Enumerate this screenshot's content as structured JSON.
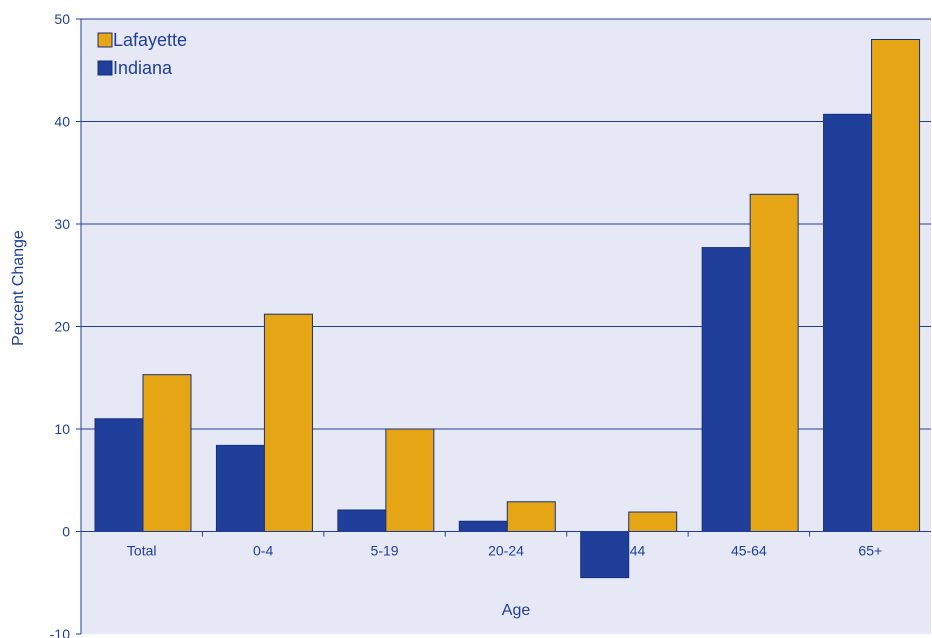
{
  "chart_data": {
    "type": "bar",
    "title": "",
    "xlabel": "Age",
    "ylabel": "Percent Change",
    "categories": [
      "Total",
      "0-4",
      "5-19",
      "20-24",
      "25-44",
      "45-64",
      "65+"
    ],
    "series": [
      {
        "name": "Indiana",
        "values": [
          11.0,
          8.4,
          2.1,
          1.0,
          -4.5,
          27.7,
          40.7
        ],
        "color": "#1f3f9a"
      },
      {
        "name": "Lafayette",
        "values": [
          15.3,
          21.2,
          10.0,
          2.9,
          1.9,
          32.9,
          48.0
        ],
        "color": "#e5a514"
      }
    ],
    "ylim": [
      -10,
      50
    ],
    "yticks": [
      -10,
      0,
      10,
      20,
      30,
      40,
      50
    ],
    "grid": true,
    "legend_position": "top-left",
    "legend_order": [
      "Lafayette",
      "Indiana"
    ],
    "colors": {
      "background": "#e6e8f5",
      "axis": "#1f3f9a",
      "text": "#1f3f9a"
    }
  }
}
